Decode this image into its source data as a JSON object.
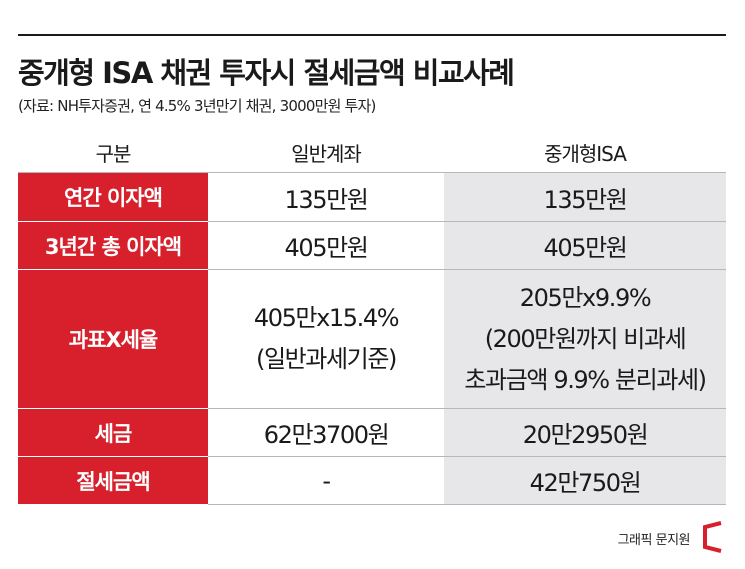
{
  "title": "중개형 ISA 채권 투자시 절세금액 비교사례",
  "subtitle": "(자료: NH투자증권, 연 4.5% 3년만기 채권, 3000만원 투자)",
  "table": {
    "headers": [
      "구분",
      "일반계좌",
      "중개형ISA"
    ],
    "rows": [
      {
        "label": "연간 이자액",
        "general": [
          "135만원"
        ],
        "isa": [
          "135만원"
        ]
      },
      {
        "label": "3년간 총 이자액",
        "general": [
          "405만원"
        ],
        "isa": [
          "405만원"
        ]
      },
      {
        "label": "과표X세율",
        "general": [
          "405만x15.4%",
          "(일반과세기준)"
        ],
        "isa": [
          "205만x9.9%",
          "(200만원까지 비과세",
          "초과금액 9.9% 분리과세)"
        ]
      },
      {
        "label": "세금",
        "general": [
          "62만3700원"
        ],
        "isa": [
          "20만2950원"
        ]
      },
      {
        "label": "절세금액",
        "general": [
          "-"
        ],
        "isa": [
          "42만750원"
        ]
      }
    ]
  },
  "credit": "그래픽 문지원",
  "colors": {
    "accent": "#d7202c",
    "isa_bg": "#e7e7e9"
  },
  "icons": {
    "logo": "red-bracket-logo"
  }
}
